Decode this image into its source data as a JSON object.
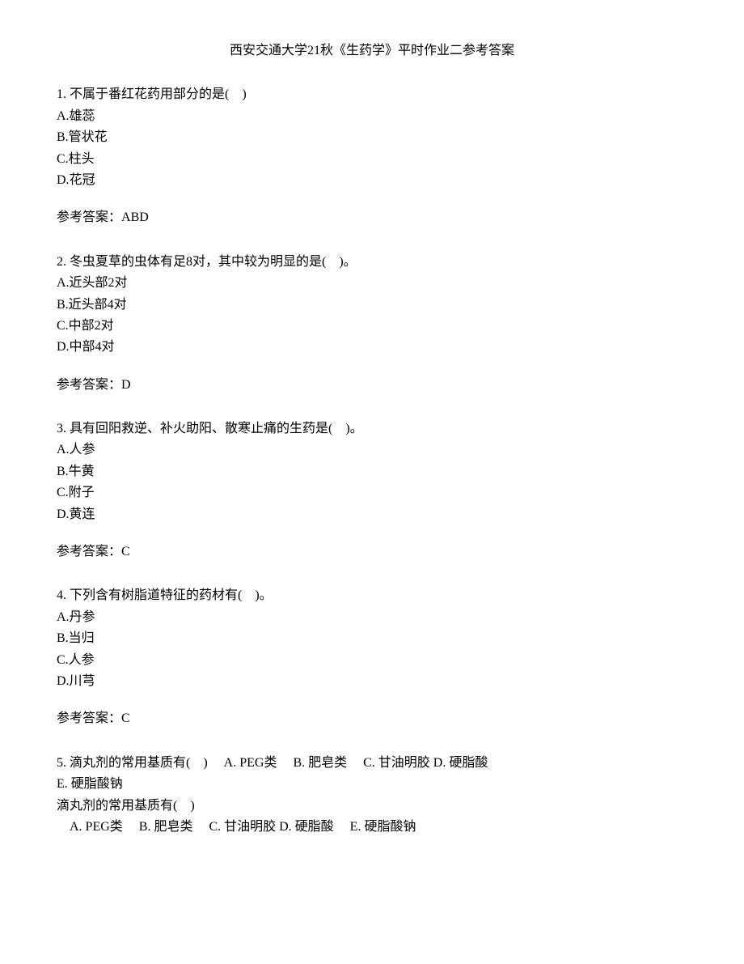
{
  "title": "西安交通大学21秋《生药学》平时作业二参考答案",
  "questions": [
    {
      "number": "1.",
      "text": "不属于番红花药用部分的是(　)",
      "options": [
        "A.雄蕊",
        "B.管状花",
        "C.柱头",
        "D.花冠"
      ],
      "answer_label": "参考答案：",
      "answer": "ABD"
    },
    {
      "number": "2.",
      "text": "冬虫夏草的虫体有足8对，其中较为明显的是(　)。",
      "options": [
        "A.近头部2对",
        "B.近头部4对",
        "C.中部2对",
        "D.中部4对"
      ],
      "answer_label": "参考答案：",
      "answer": "D"
    },
    {
      "number": "3.",
      "text": "具有回阳救逆、补火助阳、散寒止痛的生药是(　)。",
      "options": [
        "A.人参",
        "B.牛黄",
        "C.附子",
        "D.黄连"
      ],
      "answer_label": "参考答案：",
      "answer": "C"
    },
    {
      "number": "4.",
      "text": "下列含有树脂道特征的药材有(　)。",
      "options": [
        "A.丹参",
        "B.当归",
        "C.人参",
        "D.川芎"
      ],
      "answer_label": "参考答案：",
      "answer": "C"
    }
  ],
  "q5": {
    "line1": "5. 滴丸剂的常用基质有(　)　 A. PEG类　 B. 肥皂类　 C. 甘油明胶 D. 硬脂酸 ",
    "line2": "E. 硬脂酸钠",
    "line3": "滴丸剂的常用基质有(　)",
    "line4": "A. PEG类　 B. 肥皂类　 C. 甘油明胶 D. 硬脂酸　 E. 硬脂酸钠"
  }
}
